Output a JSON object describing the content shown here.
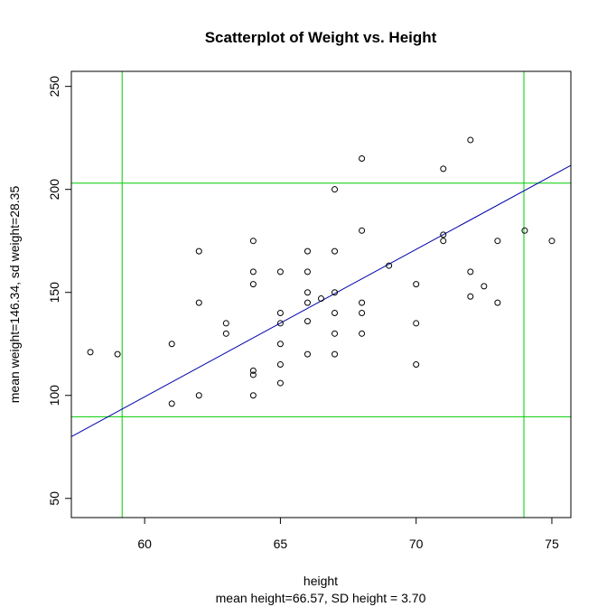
{
  "chart_data": {
    "type": "scatter",
    "title": "Scatterplot of Weight vs. Height",
    "xlabel": "height",
    "xlabel_sub": "mean height=66.57, SD height = 3.70",
    "ylabel": "mean weight=146.34, sd weight=28.35",
    "xlim": [
      57.3,
      75.7
    ],
    "ylim": [
      40.7,
      257.3
    ],
    "x_ticks": [
      60,
      65,
      70,
      75
    ],
    "y_ticks": [
      50,
      100,
      150,
      200,
      250
    ],
    "grid": false,
    "points": [
      {
        "x": 58,
        "y": 121
      },
      {
        "x": 59,
        "y": 120
      },
      {
        "x": 61,
        "y": 125
      },
      {
        "x": 61,
        "y": 96
      },
      {
        "x": 62,
        "y": 170
      },
      {
        "x": 62,
        "y": 145
      },
      {
        "x": 62,
        "y": 100
      },
      {
        "x": 63,
        "y": 135
      },
      {
        "x": 63,
        "y": 130
      },
      {
        "x": 64,
        "y": 175
      },
      {
        "x": 64,
        "y": 160
      },
      {
        "x": 64,
        "y": 154
      },
      {
        "x": 64,
        "y": 112
      },
      {
        "x": 64,
        "y": 110
      },
      {
        "x": 64,
        "y": 100
      },
      {
        "x": 65,
        "y": 160
      },
      {
        "x": 65,
        "y": 140
      },
      {
        "x": 65,
        "y": 135
      },
      {
        "x": 65,
        "y": 125
      },
      {
        "x": 65,
        "y": 115
      },
      {
        "x": 65,
        "y": 106
      },
      {
        "x": 66,
        "y": 170
      },
      {
        "x": 66,
        "y": 160
      },
      {
        "x": 66,
        "y": 150
      },
      {
        "x": 66,
        "y": 145
      },
      {
        "x": 66,
        "y": 136
      },
      {
        "x": 66,
        "y": 120
      },
      {
        "x": 66.5,
        "y": 147
      },
      {
        "x": 67,
        "y": 200
      },
      {
        "x": 67,
        "y": 170
      },
      {
        "x": 67,
        "y": 150
      },
      {
        "x": 67,
        "y": 140
      },
      {
        "x": 67,
        "y": 130
      },
      {
        "x": 67,
        "y": 120
      },
      {
        "x": 68,
        "y": 215
      },
      {
        "x": 68,
        "y": 180
      },
      {
        "x": 68,
        "y": 145
      },
      {
        "x": 68,
        "y": 140
      },
      {
        "x": 68,
        "y": 130
      },
      {
        "x": 69,
        "y": 163
      },
      {
        "x": 70,
        "y": 154
      },
      {
        "x": 70,
        "y": 135
      },
      {
        "x": 70,
        "y": 115
      },
      {
        "x": 71,
        "y": 210
      },
      {
        "x": 71,
        "y": 178
      },
      {
        "x": 71,
        "y": 175
      },
      {
        "x": 72,
        "y": 224
      },
      {
        "x": 72,
        "y": 160
      },
      {
        "x": 72,
        "y": 148
      },
      {
        "x": 72.5,
        "y": 153
      },
      {
        "x": 73,
        "y": 175
      },
      {
        "x": 73,
        "y": 145
      },
      {
        "x": 74,
        "y": 180
      },
      {
        "x": 75,
        "y": 175
      }
    ],
    "regression_line": {
      "color": "#0000aa",
      "intercept": -330.1,
      "slope": 7.157
    },
    "vlines": {
      "color": "#00cc00",
      "values": [
        59.17,
        73.97
      ]
    },
    "hlines": {
      "color": "#00cc00",
      "values": [
        89.64,
        203.04
      ]
    },
    "point_color": "#000000"
  }
}
